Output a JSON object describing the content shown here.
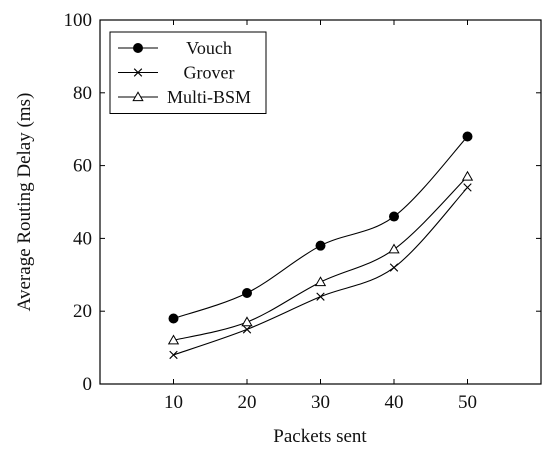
{
  "chart_data": {
    "type": "line",
    "title": "",
    "xlabel": "Packets sent",
    "ylabel": "Average Routing Delay (ms)",
    "x": [
      10,
      20,
      30,
      40,
      50
    ],
    "xlim": [
      0,
      60
    ],
    "ylim": [
      0,
      100
    ],
    "xticks": [
      10,
      20,
      30,
      40,
      50
    ],
    "yticks": [
      0,
      20,
      40,
      60,
      80,
      100
    ],
    "grid": false,
    "legend_position": "top-left",
    "line_style": "smooth",
    "series": [
      {
        "name": "Vouch",
        "marker": "filled-circle",
        "color": "#000000",
        "values": [
          18,
          25,
          38,
          46,
          68
        ]
      },
      {
        "name": "Grover",
        "marker": "x",
        "color": "#000000",
        "values": [
          8,
          15,
          24,
          32,
          54
        ]
      },
      {
        "name": "Multi-BSM",
        "marker": "triangle",
        "color": "#000000",
        "values": [
          12,
          17,
          28,
          37,
          57
        ]
      }
    ]
  }
}
